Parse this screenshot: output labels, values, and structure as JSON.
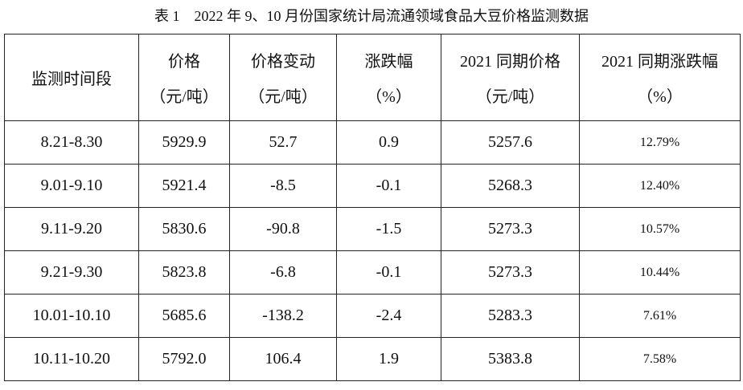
{
  "title": "表 1　2022 年 9、10 月份国家统计局流通领域食品大豆价格监测数据",
  "table": {
    "header": [
      {
        "name": "监测时间段"
      },
      {
        "name": "价格",
        "unit": "（元/吨）"
      },
      {
        "name": "价格变动",
        "unit": "（元/吨）"
      },
      {
        "name": "涨跌幅",
        "unit": "（%）"
      },
      {
        "name": "2021 同期价格",
        "unit": "（元/吨）"
      },
      {
        "name": "2021 同期涨跌幅",
        "unit": "（%）"
      }
    ],
    "rows": [
      [
        "8.21-8.30",
        "5929.9",
        "52.7",
        "0.9",
        "5257.6",
        "12.79%"
      ],
      [
        "9.01-9.10",
        "5921.4",
        "-8.5",
        "-0.1",
        "5268.3",
        "12.40%"
      ],
      [
        "9.11-9.20",
        "5830.6",
        "-90.8",
        "-1.5",
        "5273.3",
        "10.57%"
      ],
      [
        "9.21-9.30",
        "5823.8",
        "-6.8",
        "-0.1",
        "5273.3",
        "10.44%"
      ],
      [
        "10.01-10.10",
        "5685.6",
        "-138.2",
        "-2.4",
        "5283.3",
        "7.61%"
      ],
      [
        "10.11-10.20",
        "5792.0",
        "106.4",
        "1.9",
        "5383.8",
        "7.58%"
      ]
    ]
  }
}
